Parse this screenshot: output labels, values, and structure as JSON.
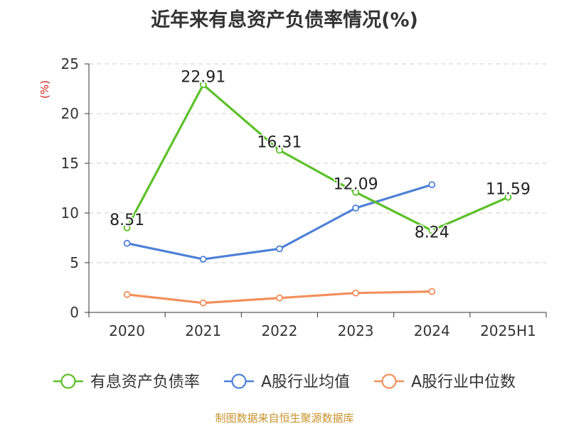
{
  "chart_data": {
    "type": "line",
    "title": "近年来有息资产负债率情况(%)",
    "ylabel": "(%)",
    "xlabel": "",
    "categories": [
      "2020",
      "2021",
      "2022",
      "2023",
      "2024",
      "2025H1"
    ],
    "ylim": [
      0,
      25
    ],
    "yticks": [
      0,
      5,
      10,
      15,
      20,
      25
    ],
    "grid": true,
    "legend_position": "bottom",
    "series": [
      {
        "name": "有息资产负债率",
        "color": "#5dc02a",
        "values": [
          8.51,
          22.91,
          16.31,
          12.09,
          8.24,
          11.59
        ],
        "show_labels": true
      },
      {
        "name": "A股行业均值",
        "color": "#4e80d6",
        "values": [
          6.95,
          5.35,
          6.4,
          10.5,
          12.85,
          null
        ],
        "show_labels": false
      },
      {
        "name": "A股行业中位数",
        "color": "#f28f5b",
        "values": [
          1.8,
          0.95,
          1.45,
          1.95,
          2.1,
          null
        ],
        "show_labels": false
      }
    ],
    "data_labels": [
      "8.51",
      "22.91",
      "16.31",
      "12.09",
      "8.24",
      "11.59"
    ]
  },
  "footer": {
    "source": "制图数据来自恒生聚源数据库"
  }
}
